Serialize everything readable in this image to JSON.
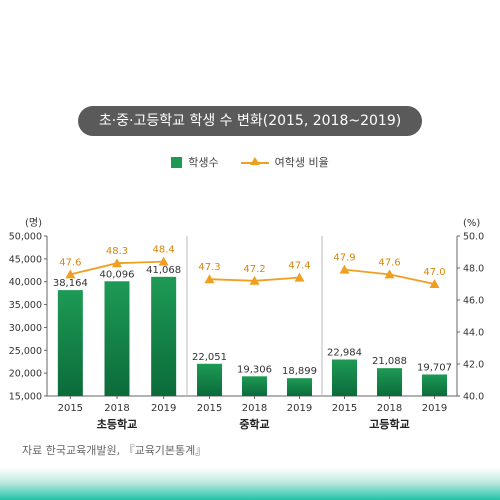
{
  "title": "초·중·고등학교 학생 수 변화(2015, 2018~2019)",
  "legend": {
    "bar_label": "학생수",
    "line_label": "여학생 비율"
  },
  "source": "자료 한국교육개발원, 『교육기본통계』",
  "colors": {
    "bar_top": "#1e9a55",
    "bar_bottom": "#0b6b3a",
    "line": "#f0a020",
    "title_bg": "#5a5a5a",
    "divider": "#bbbbbb"
  },
  "chart_data": {
    "type": "bar+line",
    "left_axis": {
      "unit_label": "(명)",
      "range": [
        15000,
        50000
      ],
      "ticks": [
        "15,000",
        "20,000",
        "25,000",
        "30,000",
        "35,000",
        "40,000",
        "45,000",
        "50,000"
      ],
      "tick_values": [
        15000,
        20000,
        25000,
        30000,
        35000,
        40000,
        45000,
        50000
      ]
    },
    "right_axis": {
      "unit_label": "(%)",
      "range": [
        40.0,
        50.0
      ],
      "ticks": [
        "40.0",
        "42.0",
        "44.0",
        "46.0",
        "48.0",
        "50.0"
      ],
      "tick_values": [
        40,
        42,
        44,
        46,
        48,
        50
      ]
    },
    "groups": [
      {
        "name": "초등학교",
        "years": [
          "2015",
          "2018",
          "2019"
        ],
        "students": [
          38164,
          40096,
          41068
        ],
        "students_labels": [
          "38,164",
          "40,096",
          "41,068"
        ],
        "female_ratio": [
          47.6,
          48.3,
          48.4
        ],
        "female_ratio_labels": [
          "47.6",
          "48.3",
          "48.4"
        ]
      },
      {
        "name": "중학교",
        "years": [
          "2015",
          "2018",
          "2019"
        ],
        "students": [
          22051,
          19306,
          18899
        ],
        "students_labels": [
          "22,051",
          "19,306",
          "18,899"
        ],
        "female_ratio": [
          47.3,
          47.2,
          47.4
        ],
        "female_ratio_labels": [
          "47.3",
          "47.2",
          "47.4"
        ]
      },
      {
        "name": "고등학교",
        "years": [
          "2015",
          "2018",
          "2019"
        ],
        "students": [
          22984,
          21088,
          19707
        ],
        "students_labels": [
          "22,984",
          "21,088",
          "19,707"
        ],
        "female_ratio": [
          47.9,
          47.6,
          47.0
        ],
        "female_ratio_labels": [
          "47.9",
          "47.6",
          "47.0"
        ]
      }
    ]
  }
}
